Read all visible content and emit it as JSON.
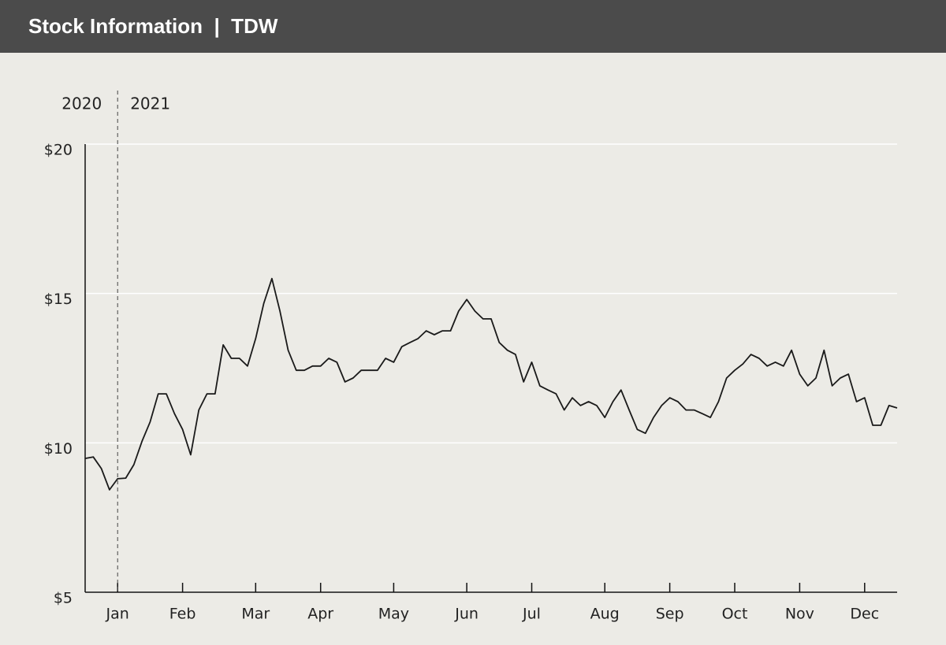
{
  "chart_data": {
    "type": "line",
    "title": "Stock Information  |  TDW",
    "annotations": [
      "2020",
      "2021"
    ],
    "categories": [
      null,
      null,
      null,
      null,
      "Jan",
      null,
      null,
      null,
      null,
      null,
      null,
      null,
      "Feb",
      null,
      null,
      null,
      null,
      null,
      null,
      null,
      null,
      "Mar",
      null,
      null,
      null,
      null,
      null,
      null,
      null,
      "Apr",
      null,
      null,
      null,
      null,
      null,
      null,
      null,
      null,
      "May",
      null,
      null,
      null,
      null,
      null,
      null,
      null,
      null,
      "Jun",
      null,
      null,
      null,
      null,
      null,
      null,
      null,
      "Jul",
      null,
      null,
      null,
      null,
      null,
      null,
      null,
      null,
      "Aug",
      null,
      null,
      null,
      null,
      null,
      null,
      null,
      "Sep",
      null,
      null,
      null,
      null,
      null,
      null,
      null,
      "Oct",
      null,
      null,
      null,
      null,
      null,
      null,
      null,
      "Nov",
      null,
      null,
      null,
      null,
      null,
      null,
      null,
      "Dec",
      null,
      null,
      null,
      null
    ],
    "values": [
      9.48,
      9.53,
      9.14,
      8.43,
      8.8,
      8.82,
      9.27,
      10.05,
      10.7,
      11.64,
      11.64,
      10.98,
      10.45,
      9.6,
      11.1,
      11.64,
      11.64,
      13.28,
      12.83,
      12.83,
      12.57,
      13.49,
      14.67,
      15.5,
      14.4,
      13.1,
      12.43,
      12.43,
      12.57,
      12.57,
      12.83,
      12.7,
      12.04,
      12.17,
      12.43,
      12.43,
      12.43,
      12.83,
      12.7,
      13.22,
      13.36,
      13.49,
      13.75,
      13.62,
      13.75,
      13.75,
      14.41,
      14.8,
      14.41,
      14.15,
      14.15,
      13.36,
      13.1,
      12.96,
      12.04,
      12.7,
      11.91,
      11.77,
      11.64,
      11.1,
      11.51,
      11.25,
      11.38,
      11.25,
      10.85,
      11.38,
      11.77,
      11.1,
      10.45,
      10.32,
      10.85,
      11.25,
      11.51,
      11.38,
      11.1,
      11.1,
      10.98,
      10.85,
      11.38,
      12.17,
      12.43,
      12.64,
      12.96,
      12.83,
      12.57,
      12.7,
      12.57,
      13.1,
      12.3,
      11.91,
      12.17,
      13.1,
      11.91,
      12.17,
      12.3,
      11.38,
      11.51,
      10.59,
      10.59,
      11.25,
      11.17
    ],
    "color": "#1a1a1a",
    "ylim": [
      5,
      20
    ],
    "yticks": [
      {
        "value": 5,
        "label": "$5"
      },
      {
        "value": 10,
        "label": "$10"
      },
      {
        "value": 15,
        "label": "$15"
      },
      {
        "value": 20,
        "label": "$20"
      }
    ],
    "grid": true
  }
}
